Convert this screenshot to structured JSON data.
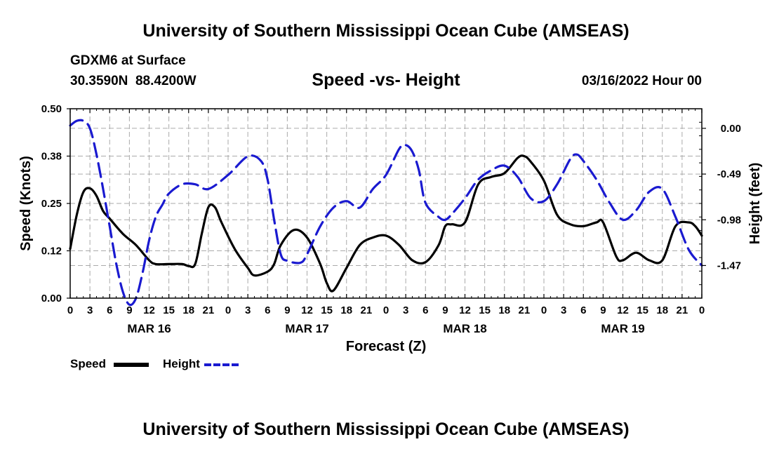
{
  "page": {
    "title": "University of Southern Mississippi Ocean Cube (AMSEAS)",
    "station": "GDXM6 at Surface",
    "coordinates": "30.3590N  88.4200W",
    "subtitle": "Speed -vs- Height",
    "datetime": "03/16/2022 Hour 00",
    "footer_title": "University of Southern Mississippi Ocean Cube (AMSEAS)"
  },
  "legend": {
    "speed_label": "Speed",
    "height_label": "Height"
  },
  "chart_data": {
    "type": "line",
    "title": "Speed -vs- Height",
    "xlabel": "Forecast (Z)",
    "ylabel": "Speed (Knots)",
    "y2label": "Height (feet)",
    "xlim": [
      0,
      96
    ],
    "ylim": [
      0,
      0.5
    ],
    "y2lim": [
      -1.82,
      0.21
    ],
    "grid": true,
    "x_ticks": [
      {
        "x": 0,
        "label": "0"
      },
      {
        "x": 3,
        "label": "3"
      },
      {
        "x": 6,
        "label": "6"
      },
      {
        "x": 9,
        "label": "9"
      },
      {
        "x": 12,
        "label": "12"
      },
      {
        "x": 15,
        "label": "15"
      },
      {
        "x": 18,
        "label": "18"
      },
      {
        "x": 21,
        "label": "21"
      },
      {
        "x": 24,
        "label": "0"
      },
      {
        "x": 27,
        "label": "3"
      },
      {
        "x": 30,
        "label": "6"
      },
      {
        "x": 33,
        "label": "9"
      },
      {
        "x": 36,
        "label": "12"
      },
      {
        "x": 39,
        "label": "15"
      },
      {
        "x": 42,
        "label": "18"
      },
      {
        "x": 45,
        "label": "21"
      },
      {
        "x": 48,
        "label": "0"
      },
      {
        "x": 51,
        "label": "3"
      },
      {
        "x": 54,
        "label": "6"
      },
      {
        "x": 57,
        "label": "9"
      },
      {
        "x": 60,
        "label": "12"
      },
      {
        "x": 63,
        "label": "15"
      },
      {
        "x": 66,
        "label": "18"
      },
      {
        "x": 69,
        "label": "21"
      },
      {
        "x": 72,
        "label": "0"
      },
      {
        "x": 75,
        "label": "3"
      },
      {
        "x": 78,
        "label": "6"
      },
      {
        "x": 81,
        "label": "9"
      },
      {
        "x": 84,
        "label": "12"
      },
      {
        "x": 87,
        "label": "15"
      },
      {
        "x": 90,
        "label": "18"
      },
      {
        "x": 93,
        "label": "21"
      },
      {
        "x": 96,
        "label": "0"
      }
    ],
    "day_labels": [
      {
        "x": 12,
        "label": "MAR 16"
      },
      {
        "x": 36,
        "label": "MAR 17"
      },
      {
        "x": 60,
        "label": "MAR 18"
      },
      {
        "x": 84,
        "label": "MAR 19"
      }
    ],
    "y_ticks": [
      {
        "value": 0.0,
        "label": "0.00"
      },
      {
        "value": 0.125,
        "label": "0.12"
      },
      {
        "value": 0.25,
        "label": "0.25"
      },
      {
        "value": 0.375,
        "label": "0.38"
      },
      {
        "value": 0.5,
        "label": "0.50"
      }
    ],
    "y2_ticks": [
      {
        "value": 0.0,
        "label": "0.00"
      },
      {
        "value": -0.49,
        "label": "-0.49"
      },
      {
        "value": -0.98,
        "label": "-0.98"
      },
      {
        "value": -1.47,
        "label": "-1.47"
      }
    ],
    "series": [
      {
        "name": "Speed",
        "axis": "left",
        "color": "#000000",
        "style": "solid",
        "x": [
          0,
          1,
          2,
          3,
          4,
          5,
          6,
          8,
          10,
          12,
          13,
          15,
          17,
          18,
          19,
          20,
          21,
          22,
          23,
          25,
          27,
          28,
          30,
          31,
          32,
          34,
          36,
          38,
          39,
          40,
          42,
          44,
          46,
          48,
          50,
          52,
          54,
          56,
          57,
          58,
          60,
          62,
          64,
          66,
          68,
          69,
          70,
          72,
          74,
          76,
          78,
          80,
          81,
          83,
          84,
          86,
          88,
          90,
          92,
          94,
          95,
          96
        ],
        "y": [
          0.13,
          0.22,
          0.28,
          0.29,
          0.27,
          0.23,
          0.21,
          0.17,
          0.14,
          0.1,
          0.09,
          0.09,
          0.09,
          0.085,
          0.09,
          0.17,
          0.24,
          0.24,
          0.2,
          0.13,
          0.08,
          0.06,
          0.07,
          0.09,
          0.14,
          0.18,
          0.16,
          0.09,
          0.04,
          0.02,
          0.08,
          0.14,
          0.16,
          0.165,
          0.14,
          0.1,
          0.095,
          0.14,
          0.19,
          0.195,
          0.2,
          0.3,
          0.32,
          0.33,
          0.37,
          0.375,
          0.36,
          0.31,
          0.22,
          0.195,
          0.19,
          0.2,
          0.2,
          0.11,
          0.1,
          0.12,
          0.1,
          0.1,
          0.19,
          0.2,
          0.19,
          0.165
        ]
      },
      {
        "name": "Height",
        "axis": "right",
        "color": "#1a1ad0",
        "style": "dashed",
        "x": [
          0,
          1,
          2,
          3,
          4,
          5,
          6,
          7,
          8,
          9,
          10,
          11,
          12,
          13,
          14,
          15,
          17,
          19,
          21,
          24,
          27,
          29,
          30,
          31,
          32,
          33,
          35,
          36,
          38,
          40,
          42,
          44,
          46,
          48,
          50,
          51,
          52,
          53,
          54,
          56,
          57,
          58,
          60,
          62,
          64,
          66,
          68,
          70,
          72,
          74,
          76,
          77,
          78,
          80,
          82,
          84,
          86,
          88,
          90,
          92,
          94,
          96
        ],
        "y": [
          0.03,
          0.08,
          0.08,
          0.0,
          -0.28,
          -0.65,
          -1.05,
          -1.45,
          -1.75,
          -1.89,
          -1.82,
          -1.55,
          -1.2,
          -0.95,
          -0.82,
          -0.7,
          -0.6,
          -0.6,
          -0.65,
          -0.5,
          -0.3,
          -0.35,
          -0.55,
          -0.98,
          -1.35,
          -1.42,
          -1.44,
          -1.35,
          -1.05,
          -0.85,
          -0.78,
          -0.85,
          -0.65,
          -0.5,
          -0.22,
          -0.18,
          -0.25,
          -0.45,
          -0.8,
          -0.95,
          -0.98,
          -0.92,
          -0.75,
          -0.55,
          -0.45,
          -0.4,
          -0.52,
          -0.75,
          -0.78,
          -0.6,
          -0.33,
          -0.28,
          -0.35,
          -0.55,
          -0.8,
          -0.98,
          -0.88,
          -0.68,
          -0.65,
          -0.95,
          -1.3,
          -1.47
        ]
      }
    ]
  }
}
